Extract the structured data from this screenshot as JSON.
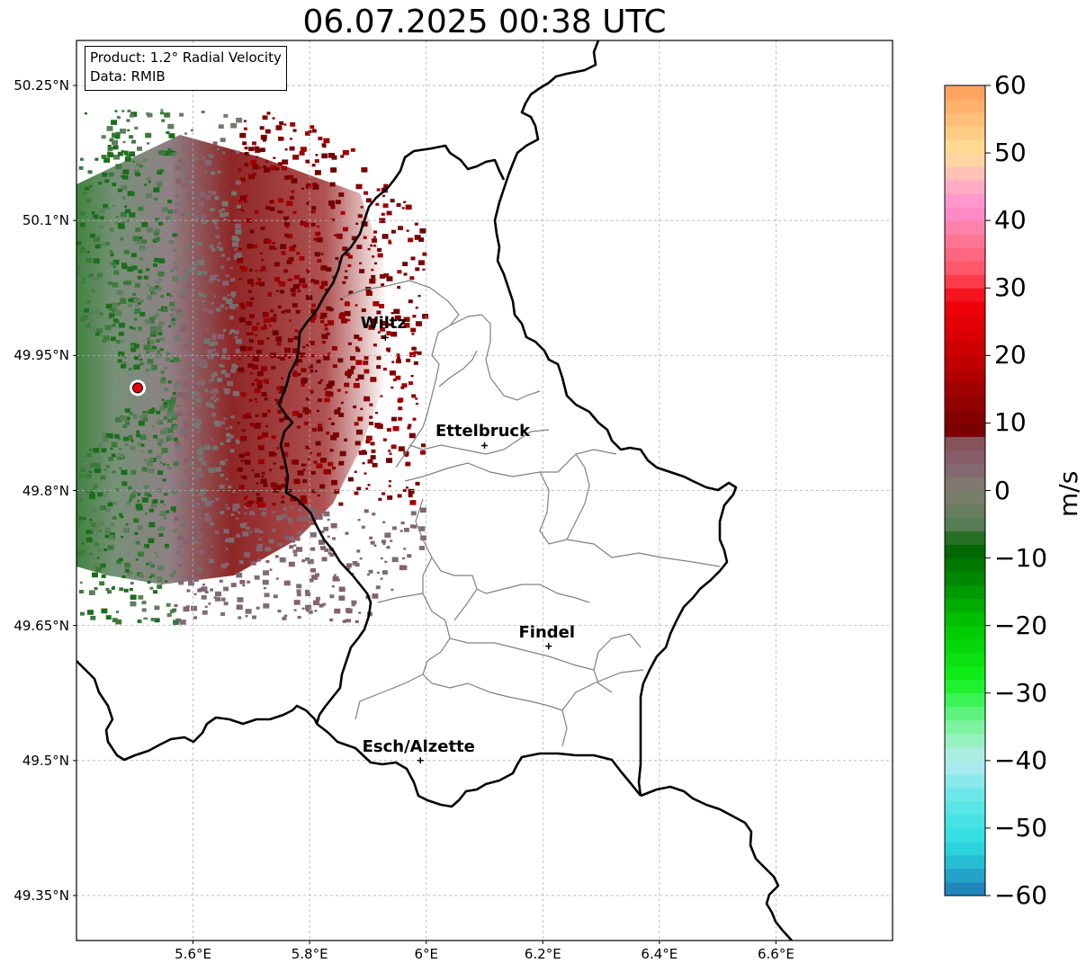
{
  "title": "06.07.2025 00:38 UTC",
  "info": {
    "product": "Product: 1.2° Radial Velocity",
    "source": "Data: RMIB"
  },
  "axes": {
    "lon_range": [
      5.4,
      6.8
    ],
    "lat_range": [
      49.3,
      50.3
    ],
    "lat_ticks": [
      {
        "value": 50.25,
        "label": "50.25°N"
      },
      {
        "value": 50.1,
        "label": "50.1°N"
      },
      {
        "value": 49.95,
        "label": "49.95°N"
      },
      {
        "value": 49.8,
        "label": "49.8°N"
      },
      {
        "value": 49.65,
        "label": "49.65°N"
      },
      {
        "value": 49.5,
        "label": "49.5°N"
      },
      {
        "value": 49.35,
        "label": "49.35°N"
      }
    ],
    "lon_ticks": [
      {
        "value": 5.6,
        "label": "5.6°E"
      },
      {
        "value": 5.8,
        "label": "5.8°E"
      },
      {
        "value": 6.0,
        "label": "6°E"
      },
      {
        "value": 6.2,
        "label": "6.2°E"
      },
      {
        "value": 6.4,
        "label": "6.4°E"
      },
      {
        "value": 6.6,
        "label": "6.6°E"
      }
    ],
    "grid": true
  },
  "radar_site": {
    "lon": 5.505,
    "lat": 49.914,
    "color": "#e8000b"
  },
  "cities": [
    {
      "name": "Wiltz",
      "lon": 5.93,
      "lat": 49.97
    },
    {
      "name": "Ettelbruck",
      "lon": 6.1,
      "lat": 49.85
    },
    {
      "name": "Findel",
      "lon": 6.21,
      "lat": 49.627
    },
    {
      "name": "Esch/Alzette",
      "lon": 5.99,
      "lat": 49.5
    }
  ],
  "colorbar": {
    "unit": "m/s",
    "range": [
      -60,
      60
    ],
    "ticks": [
      {
        "value": 60,
        "label": "60"
      },
      {
        "value": 50,
        "label": "50"
      },
      {
        "value": 40,
        "label": "40"
      },
      {
        "value": 30,
        "label": "30"
      },
      {
        "value": 20,
        "label": "20"
      },
      {
        "value": 10,
        "label": "10"
      },
      {
        "value": 0,
        "label": "0"
      },
      {
        "value": -10,
        "label": "−10"
      },
      {
        "value": -20,
        "label": "−20"
      },
      {
        "value": -30,
        "label": "−30"
      },
      {
        "value": -40,
        "label": "−40"
      },
      {
        "value": -50,
        "label": "−50"
      },
      {
        "value": -60,
        "label": "−60"
      }
    ],
    "stops": [
      {
        "value": -60,
        "color": "#1f77b4"
      },
      {
        "value": -56,
        "color": "#24b2d0"
      },
      {
        "value": -52,
        "color": "#2edde0"
      },
      {
        "value": -46,
        "color": "#5fe6e6"
      },
      {
        "value": -40,
        "color": "#b5ecef"
      },
      {
        "value": -36,
        "color": "#8df2b0"
      },
      {
        "value": -32,
        "color": "#4cf56a"
      },
      {
        "value": -28,
        "color": "#11f01a"
      },
      {
        "value": -20,
        "color": "#00c800"
      },
      {
        "value": -14,
        "color": "#008f00"
      },
      {
        "value": -8,
        "color": "#006000"
      },
      {
        "value": -6,
        "color": "#4e7b4e"
      },
      {
        "value": 0,
        "color": "#7f7f70"
      },
      {
        "value": 4,
        "color": "#866270"
      },
      {
        "value": 8,
        "color": "#864c55"
      },
      {
        "value": 9,
        "color": "#7a0000"
      },
      {
        "value": 14,
        "color": "#990000"
      },
      {
        "value": 20,
        "color": "#c80000"
      },
      {
        "value": 28,
        "color": "#f20008"
      },
      {
        "value": 32,
        "color": "#ff5060"
      },
      {
        "value": 38,
        "color": "#ff7ea0"
      },
      {
        "value": 42,
        "color": "#ff8ed0"
      },
      {
        "value": 46,
        "color": "#ffb6c0"
      },
      {
        "value": 50,
        "color": "#ffe096"
      },
      {
        "value": 55,
        "color": "#ffbf78"
      },
      {
        "value": 60,
        "color": "#ff9e5a"
      }
    ]
  },
  "colors": {
    "border": "#000000",
    "canton": "#808080",
    "grid": "#b0b0b0"
  }
}
